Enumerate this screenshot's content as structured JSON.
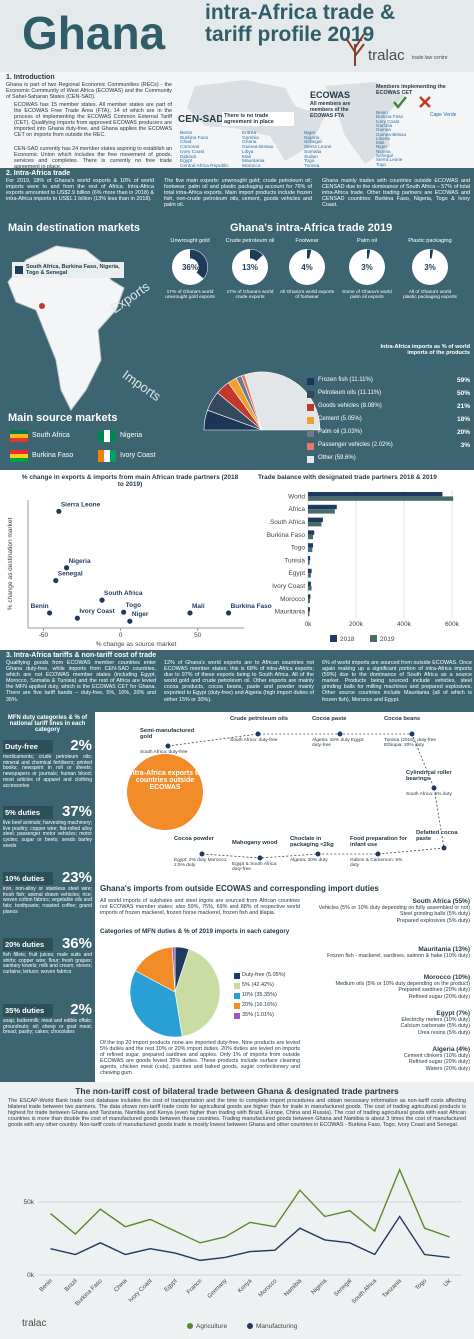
{
  "header": {
    "country": "Ghana",
    "title": "intra-Africa trade & tariff profile 2019",
    "brand": "tralac",
    "brand_sub": "trade law centre"
  },
  "intro": {
    "heading": "1. Introduction",
    "paragraphs": [
      "Ghana is part of two Regional Economic Communities (RECs) - the Economic Community of West Africa (ECOWAS) and the Community of Sahel-Saharan States (CEN-SAD).",
      "ECOWAS has 15 member states. All member states are part of the ECOWAS Free Trade Area (FTA), 14 of which are in the process of implementing the ECOWAS Common External Tariff (CET). Qualifying imports from approved ECOWAS producers are imported into Ghana duty-free, and Ghana applies the ECOWAS CET on imports from outside the REC.",
      "CEN-SAD currently has 24 member states aspiring to establish an Economic Union which includes the free movement of goods, services and completes. There is currently no free trade agreement in place."
    ],
    "censad": {
      "name": "CEN-SAD",
      "note": "There is no trade agreement in place",
      "members": [
        "Benin",
        "Burkina Faso",
        "Chad",
        "Comoros",
        "Ivory Coast",
        "Djibouti",
        "Egypt",
        "Central Africa Republic",
        "Eritrea",
        "Gambia",
        "Ghana",
        "Guinea-Bissau",
        "Libya",
        "Mali",
        "Mauritania",
        "Morocco",
        "Niger",
        "Nigeria",
        "Senegal",
        "Sierra Leone",
        "Somalia",
        "Sudan",
        "Togo",
        "Tunisia"
      ]
    },
    "ecowas": {
      "name": "ECOWAS",
      "note": "All members are members of the ECOWAS FTA",
      "cet_heading": "Members implementing the ECOWAS CET",
      "members": [
        "Benin",
        "Burkina Faso",
        "Ivory Coast",
        "Gambia",
        "Guinea",
        "Guinea-Bissau",
        "Liberia",
        "Mali",
        "Niger",
        "Nigeria",
        "Senegal",
        "Sierra Leone",
        "Togo"
      ],
      "non_cet": "Cape Verde"
    }
  },
  "intra_africa": {
    "heading": "2. Intra-Africa trade",
    "paragraphs": [
      "For 2019, 18% of Ghana's world exports & 10% of world imports were to and from the rest of Africa. Intra-Africa exports amounted to US$2.9 billion (6% more than in 2018) & intra-Africa imports to US$1.1 billion (13% less than in 2018).",
      "The five main exports: unwrought gold; crude petroleum oil; footwear; palm oil and plastic packaging account for 76% of total intra-Africa exports. Main import products include frozen fish, non-crude petroleum oils, cement, goods vehicles and palm oil.",
      "Ghana mainly trades with countries outside ECOWAS and CENSAD due to the dominance of South Africa – 57% of total intra-Africa trade. Other trading partners are ECOWAS and CENSAD countries: Burkina Faso, Nigeria, Togo & Ivory Coast."
    ]
  },
  "markets": {
    "destination_heading": "Main destination markets",
    "destination_legend": "South Africa, Burkina Faso, Nigeria, Togo & Senegal",
    "trade_heading": "Ghana's intra-Africa trade 2019",
    "source_heading": "Main source markets",
    "sources": [
      "South Africa",
      "Nigeria",
      "Burkina Faso",
      "Ivory Coast"
    ]
  },
  "exports": {
    "type": "donut",
    "label": "Exports",
    "color": "#1d3c5a",
    "items": [
      {
        "name": "Unwrought gold",
        "value": 36,
        "value_label": "36%",
        "caption": "17% of Ghana's world unwrought gold exports"
      },
      {
        "name": "Crude petroleum oil",
        "value": 13,
        "value_label": "13%",
        "caption": "17% of Ghana's world crude exports"
      },
      {
        "name": "Footwear",
        "value": 4,
        "value_label": "4%",
        "caption": "All Ghana's world exports of footwear"
      },
      {
        "name": "Palm oil",
        "value": 3,
        "value_label": "3%",
        "caption": "Some of Ghana's world palm oil exports"
      },
      {
        "name": "Plastic packaging",
        "value": 3,
        "value_label": "3%",
        "caption": "All of Ghana's world plastic packaging exports"
      }
    ]
  },
  "imports": {
    "type": "half-pie",
    "label": "Imports",
    "heading": "Intra-Africa imports as % of world imports of the products",
    "items": [
      {
        "name": "Frozen fish",
        "share": 11.11,
        "share_label": "(11.11%)",
        "value_label": "59%",
        "color": "#1d3557"
      },
      {
        "name": "Petroleum oils",
        "share": 11.11,
        "share_label": "(11.11%)",
        "value_label": "50%",
        "color": "#34495e"
      },
      {
        "name": "Goods vehicles",
        "share": 8.08,
        "share_label": "(8.08%)",
        "value_label": "21%",
        "color": "#c0392b"
      },
      {
        "name": "Cement",
        "share": 5.05,
        "share_label": "(5.05%)",
        "value_label": "18%",
        "color": "#f0a030"
      },
      {
        "name": "Palm oil",
        "share": 3.03,
        "share_label": "(3.03%)",
        "value_label": "20%",
        "color": "#6c7a89"
      },
      {
        "name": "Passenger vehicles",
        "share": 2.02,
        "share_label": "(2.02%)",
        "value_label": "3%",
        "color": "#e8776b"
      },
      {
        "name": "Other",
        "share": 59.6,
        "share_label": "(59.6%)",
        "color": "#e3e6e8"
      }
    ]
  },
  "scatter": {
    "type": "scatter",
    "title": "% change in exports & imports from main African trade partners (2018 to 2019)",
    "x_label": "% change as source market",
    "y_label": "% change as destination market",
    "color": "#1f3a5f",
    "labels": [
      "Sierra Leone",
      "Nigeria",
      "Senegal",
      "Benin",
      "Ivory Coast",
      "South Africa",
      "Togo",
      "Niger",
      "Mali",
      "Burkina Faso"
    ],
    "x": [
      -40,
      -35,
      -42,
      -46,
      -28,
      -12,
      2,
      6,
      45,
      70
    ],
    "y": [
      140,
      65,
      48,
      5,
      -2,
      22,
      6,
      -6,
      5,
      5
    ],
    "xlim": [
      -60,
      80
    ],
    "xticks": [
      -50,
      0,
      50
    ],
    "ylim": [
      -15,
      155
    ]
  },
  "trade_balance": {
    "type": "bar",
    "orientation": "horizontal",
    "title": "Trade balance with designated trade partners 2018 & 2019",
    "categories": [
      "World",
      "Africa",
      "South Africa",
      "Burkina Faso",
      "Togo",
      "Tunisia",
      "Egypt",
      "Ivory Coast",
      "Morocco",
      "Mauritania"
    ],
    "series": [
      {
        "name": "2018",
        "color": "#1f3a5f",
        "values": [
          560,
          120,
          62,
          26,
          21,
          9,
          15,
          12,
          10,
          8
        ]
      },
      {
        "name": "2019",
        "color": "#4a6b6b",
        "values": [
          605,
          112,
          56,
          21,
          18,
          7,
          12,
          15,
          8,
          6
        ]
      }
    ],
    "xlim": [
      0,
      650
    ],
    "xticks": [
      {
        "value": 0,
        "label": "0k"
      },
      {
        "value": 200,
        "label": "200k"
      },
      {
        "value": 400,
        "label": "400k"
      },
      {
        "value": 600,
        "label": "600k"
      }
    ]
  },
  "tariffs": {
    "heading": "3. Intra-Africa tariffs & non-tariff cost of trade",
    "paragraphs": [
      "Qualifying goods from ECOWAS member countries enter Ghana duty-free, while imports from CEN-SAD countries, which are not ECOWAS member states (including Egypt, Morocco, Somalia & Tunisia) and the rest of Africa are levied the MFN applied duty, which is the ECOWAS CET for Ghana. There are five tariff bands – duty-free, 5%, 10%, 20% and 35%.",
      "12% of Ghana's world exports are to African countries not ECOWAS member states; this is 68% of intra-Africa exports; due to 97% of these exports being to South Africa. All of the world gold and crude petroleum oil. Other exports are mainly cocoa products, cocoa beans, paste and powder mainly exported to Egypt (duty-free) and Algeria (high import duties of either 15% or 30%).",
      "6% of world imports are sourced from outside ECOWAS. Once again making up a significant portion of intra-Africa imports (59%) due to the dominance of South Africa as a source market. Products being sourced include vehicles, steel grinding balls for milling machines and prepared explosives. Other source countries include Mauritania (all of which is frozen fish), Morocco and Egypt."
    ]
  },
  "mfn": {
    "heading": "MFN duty categories & % of national tariff lines in each category",
    "categories": [
      {
        "name": "Duty-free",
        "share_label": "2%",
        "products": "medicaments; crude petroleum oils; mineral and chemical fertilisers; printed books; newsprint in roll or sheets; newspapers or journals; human blood; most articles of apparel and clothing accessories"
      },
      {
        "name": "5% duties",
        "share_label": "37%",
        "products": "live beef animals; harvesting machinery; live poultry; copper wire; flat-rolled alloy steel; passenger motor vehicles; motor cycles; sugar or beets; seeds barley seeds"
      },
      {
        "name": "10% duties",
        "share_label": "23%",
        "products": "iron, non-alloy or stainless steel wire; fresh fish; animal drawn vehicles; rice; woven cotton fabrics; vegetable oils and fats; toothpaste; roasted coffee; grand pianos"
      },
      {
        "name": "20% duties",
        "share_label": "36%",
        "products": "fish fillets; fruit juices; male suits and shirts; copper wire; flour; fresh grapes; sanitary towels; milk and cream; stoves; curtains; lettuce; woven fabrics"
      },
      {
        "name": "35% duties",
        "share_label": "2%",
        "products": "soap; buttermilk; meat and edible offals; groundnuts; oil; sheep or goat meat; bread; pastry; cakes; chocolates"
      }
    ]
  },
  "outside_exports": {
    "center": "Intra-Africa exports to countries outside ECOWAS",
    "nodes": [
      {
        "product": "Semi-manufactured gold",
        "duty": "South Africa: duty-free"
      },
      {
        "product": "Crude petroleum oils",
        "duty": "South Africa: duty-free"
      },
      {
        "product": "Cocoa paste",
        "duty": "Algeria: 15% duty Egypt: duty-free"
      },
      {
        "product": "Cocoa beans",
        "duty": "Tunisia (2016): duty-free Ethiopia: 20% duty"
      },
      {
        "product": "Cylindrical roller bearings",
        "duty": "South Africa: 5% duty"
      },
      {
        "product": "Defatted cocoa paste"
      },
      {
        "product": "Food preparation for infant use",
        "duty": "Gabon & Cameroon: 5% duty"
      },
      {
        "product": "Choclate in packaging <2kg",
        "duty": "Algeria: 30% duty"
      },
      {
        "product": "Mahogany wood",
        "duty": "Egypt & South Africa: duty-free"
      },
      {
        "product": "Cocoa powder",
        "duty": "Egypt: 2% duty Morocco: 2.5% duty"
      }
    ]
  },
  "outside_imports": {
    "heading": "Ghana's imports from outside ECOWAS and corresponding import duties",
    "paragraphs": [
      "All world imports of sulphates and steel ingots are sourced from African countries not ECOWAS member states; also 59%, 75%, 69% and 88% of respective world imports of frozen mackerel, frozen horse mackerel, frozen fish and tilapia.",
      "Of the top 20 import products none are imported duty-free. Nine products are levied 5% duties and the rest 10% or 20% import duties. 20% duties are levied on imports of refined sugar, prepared sardines and apples. Only 1% of imports from outside ECOWAS are goods levied 35% duties. These products include surface cleaning agents, chicken meat (cuts), pastries and baked goods, sugar confectionery and chewing gum."
    ],
    "countries": [
      {
        "name": "South Africa (55%)",
        "products": [
          "Vehicles (5% or 10% duty depending on fully assembled or not)",
          "Steel grinding balls (5% duty)",
          "Prepared explosives (5% duty)"
        ]
      },
      {
        "name": "Mauritania (13%)",
        "products": [
          "Frozen fish - mackerel, sardines, salmon & hake (10% duty)"
        ]
      },
      {
        "name": "Morocco (10%)",
        "products": [
          "Medium oils (5% or 10% duty depending on the product)",
          "Prepared sardines (20% duty)",
          "Refined sugar (20% duty)"
        ]
      },
      {
        "name": "Egypt (7%)",
        "products": [
          "Electricity meters (10% duty)",
          "Calcium carbonate (5% duty)",
          "Urea resins (5% duty)"
        ]
      },
      {
        "name": "Algeria (4%)",
        "products": [
          "Cement clinkers (10% duty)",
          "Refined sugar (20% duty)",
          "Waters (20% duty)"
        ]
      }
    ]
  },
  "mfn_pie": {
    "type": "pie",
    "title": "Categories of MFN duties & % of 2019 imports in each category",
    "categories": [
      "Duty-free",
      "5%",
      "10%",
      "20%",
      "35%"
    ],
    "values": [
      5.05,
      42.42,
      35.35,
      16.16,
      1.01
    ],
    "value_labels": [
      "(5.05%)",
      "(42.42%)",
      "(35.35%)",
      "(16.16%)",
      "(1.01%)"
    ],
    "colors": [
      "#1f3a5f",
      "#c8dca4",
      "#2a9fd6",
      "#f28c28",
      "#9b59b6"
    ]
  },
  "non_tariff": {
    "type": "line",
    "title": "The non-tariff cost of bilateral trade between Ghana & designated trade partners",
    "text": "The ESCAP-World Bank trade cost database includes the cost of transportation and the time to complete import procedures and obtain necessary information as non-tariff costs affecting bilateral trade between two partners. The data shows non-tariff trade costs for agricultural goods are higher than for trade in manufactured goods. The cost of trading agricultural products is highest for trade between Ghana and Tanzania, Namibia and Kenya (even higher than trading with Brazil, Europe, China and Russia). The cost of trading agricultural goods with east African countries is more than double the cost of manufactured goods between these countries. Trading manufactured goods between Ghana and Namibia is about 3 times the cost of manufactured goods with any other country. Non-tariff costs of manufactured goods trade is mostly lowest between Ghana and other countries in ECOWAS - Burkina Faso, Togo, Ivory Coast and Senegal.",
    "categories": [
      "Benin",
      "Brazil",
      "Burkina Faso",
      "China",
      "Ivory Coast",
      "Egypt",
      "France",
      "Germany",
      "Kenya",
      "Morocco",
      "Namibia",
      "Nigeria",
      "Senegal",
      "South Africa",
      "Tanzania",
      "Togo",
      "UK"
    ],
    "series": [
      {
        "name": "Agriculture",
        "color": "#5a8a2a",
        "values": [
          42,
          28,
          45,
          33,
          38,
          30,
          22,
          26,
          36,
          33,
          58,
          40,
          44,
          30,
          72,
          32,
          26
        ]
      },
      {
        "name": "Manufacturing",
        "color": "#1f3a5f",
        "values": [
          18,
          14,
          22,
          14,
          18,
          15,
          10,
          12,
          16,
          17,
          32,
          24,
          22,
          14,
          40,
          14,
          12
        ]
      }
    ],
    "ylim": [
      0,
      80
    ],
    "yticks": [
      {
        "value": 0,
        "label": "0k"
      },
      {
        "value": 50,
        "label": "50k"
      }
    ]
  }
}
